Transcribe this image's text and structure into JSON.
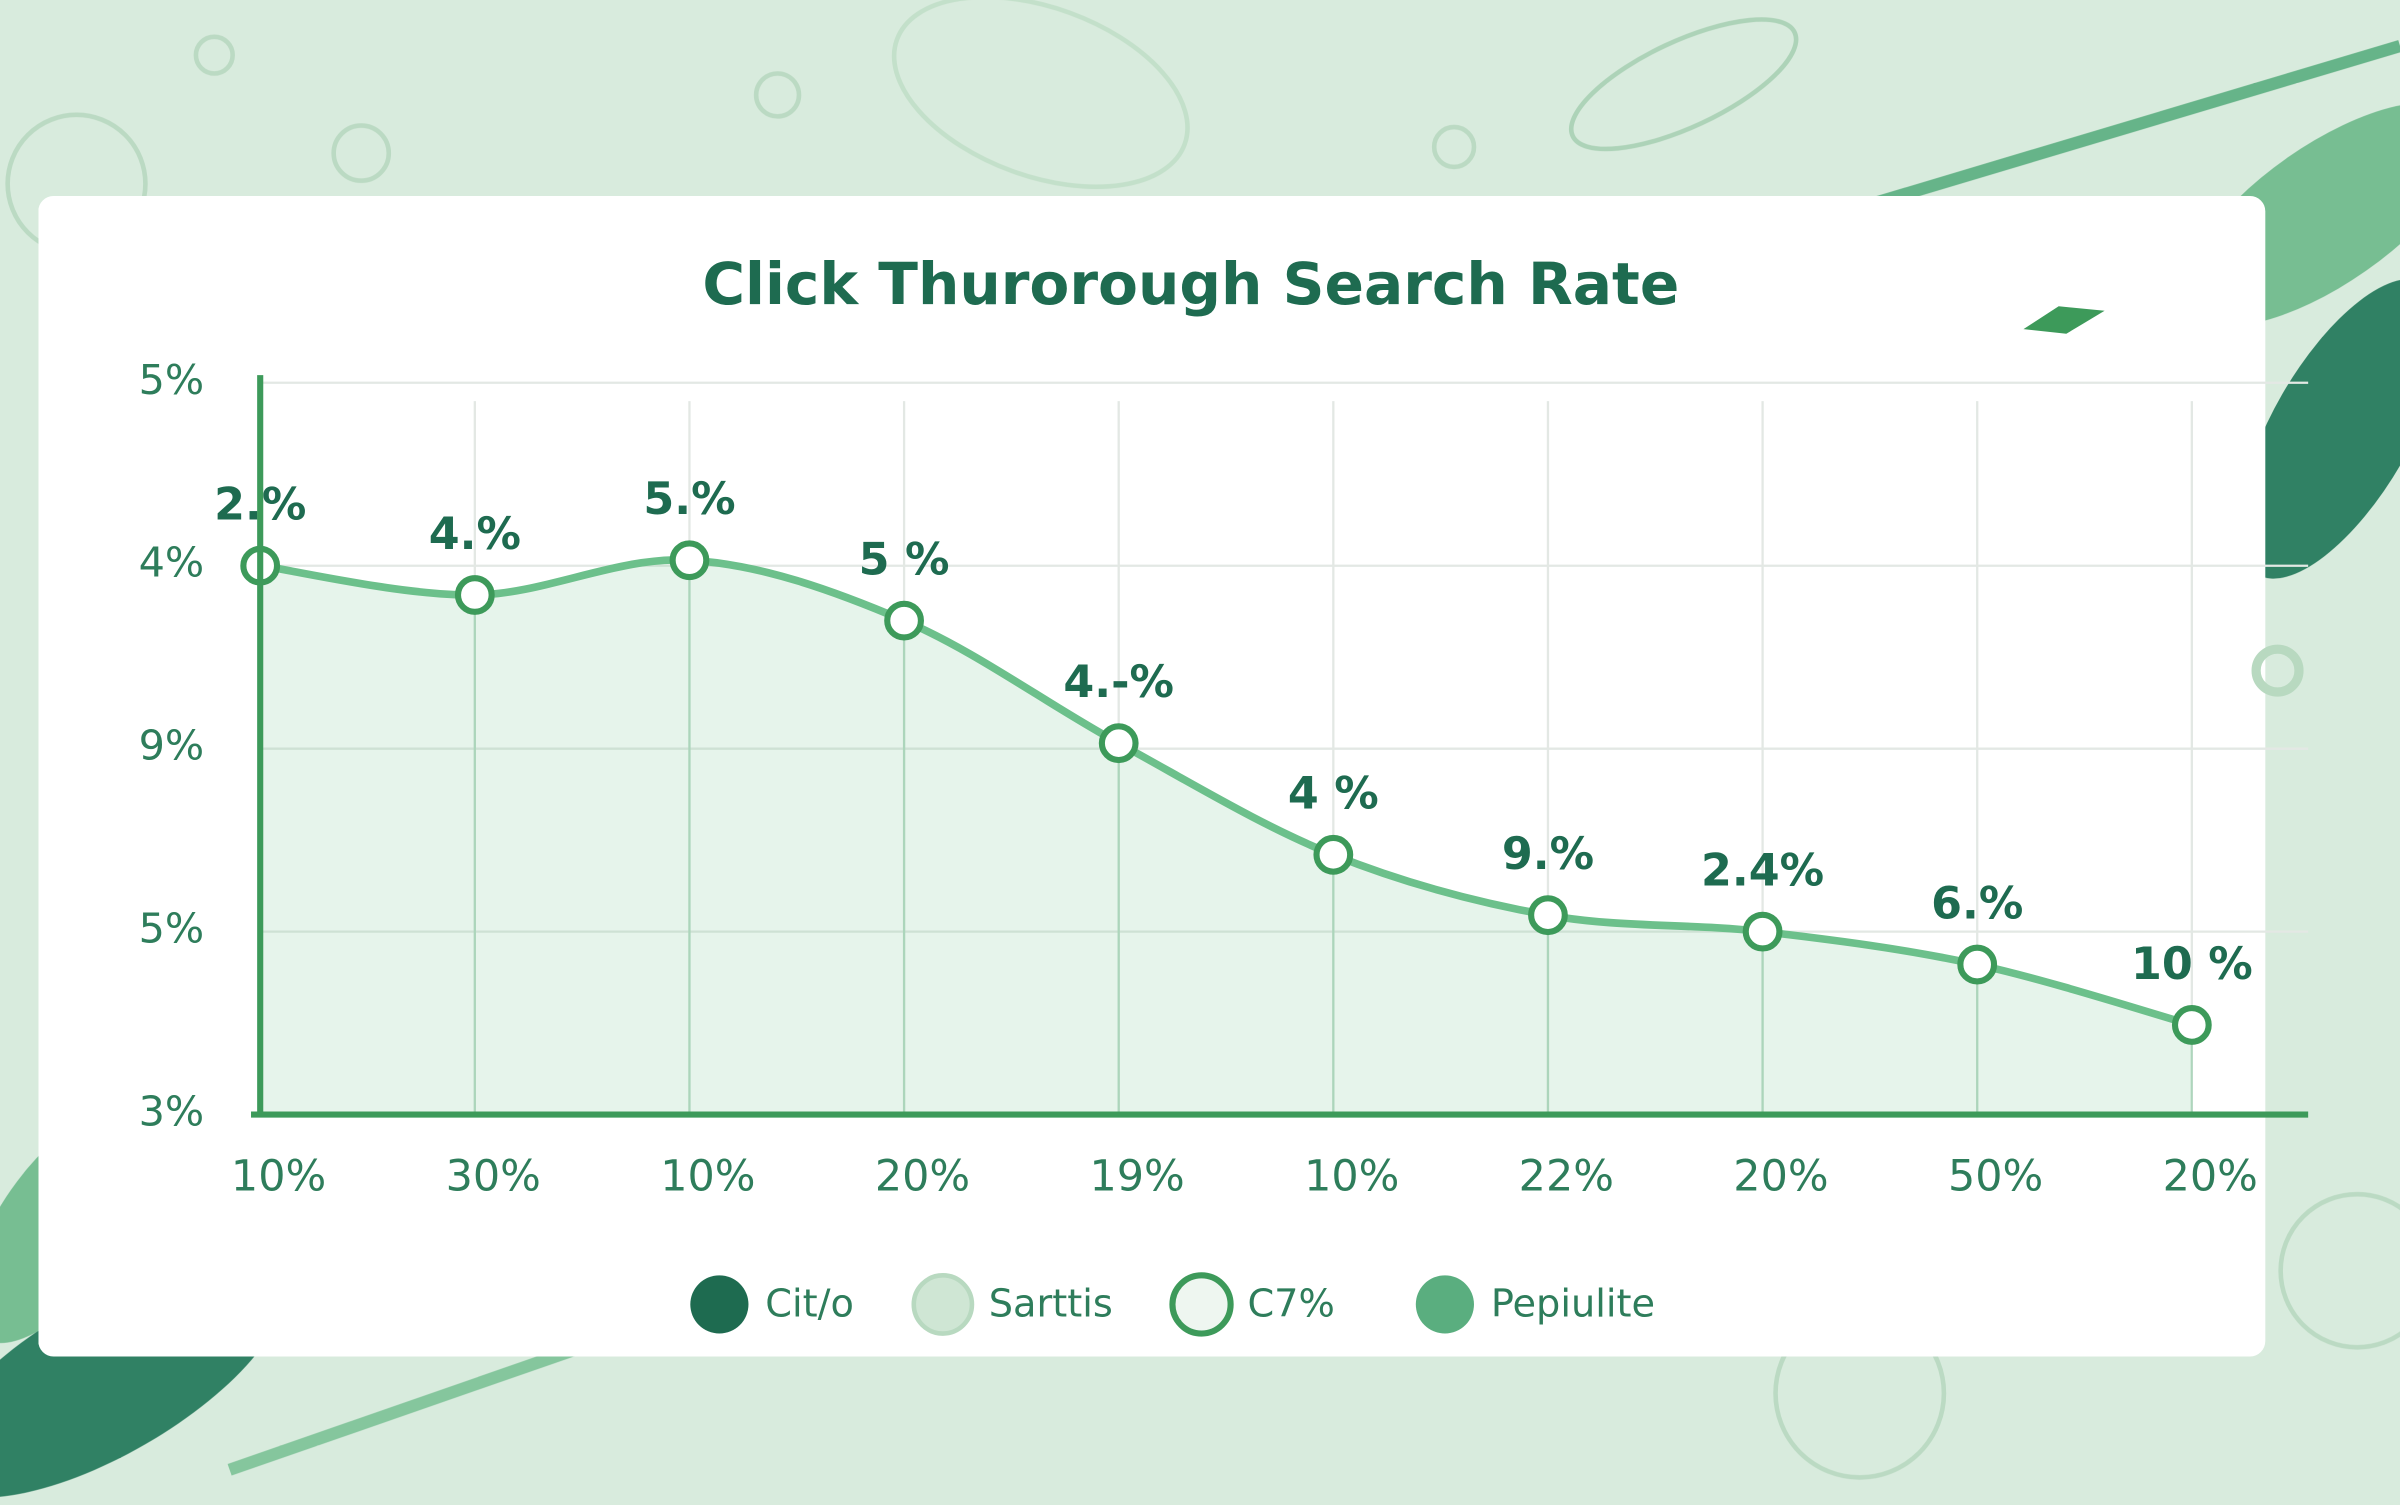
{
  "chart_data": {
    "type": "line",
    "title": "Click Thurorough Search Rate",
    "categories": [
      "10%",
      "30%",
      "10%",
      "20%",
      "19%",
      "10%",
      "22%",
      "20%",
      "50%",
      "20%"
    ],
    "series": [
      {
        "name": null,
        "color": "#6cc08b",
        "values": [
          3.0,
          2.84,
          3.03,
          2.7,
          2.03,
          1.42,
          1.09,
          1.0,
          0.82,
          0.49
        ],
        "value_labels": [
          "2.%",
          "4.%",
          "5.%",
          "5 %",
          "4.-%",
          "4 %",
          "9.%",
          "2.4%",
          "6.%",
          "10 %"
        ]
      }
    ],
    "ylim": [
      0,
      4
    ],
    "yticks": [
      {
        "value": 0,
        "label": "3%"
      },
      {
        "value": 1,
        "label": "5%"
      },
      {
        "value": 2,
        "label": "9%"
      },
      {
        "value": 3,
        "label": "4%"
      },
      {
        "value": 4,
        "label": "5%"
      }
    ],
    "grid": true,
    "legend": [
      {
        "label": "Cit/o",
        "color": "#1e6b50",
        "style": "filled"
      },
      {
        "label": "Sarttis",
        "color": "#cfe6d4",
        "style": "light"
      },
      {
        "label": "C7%",
        "color": "#3d9a5a",
        "style": "ring"
      },
      {
        "label": "Pepiulite",
        "color": "#5aae7f",
        "style": "filled"
      }
    ]
  }
}
